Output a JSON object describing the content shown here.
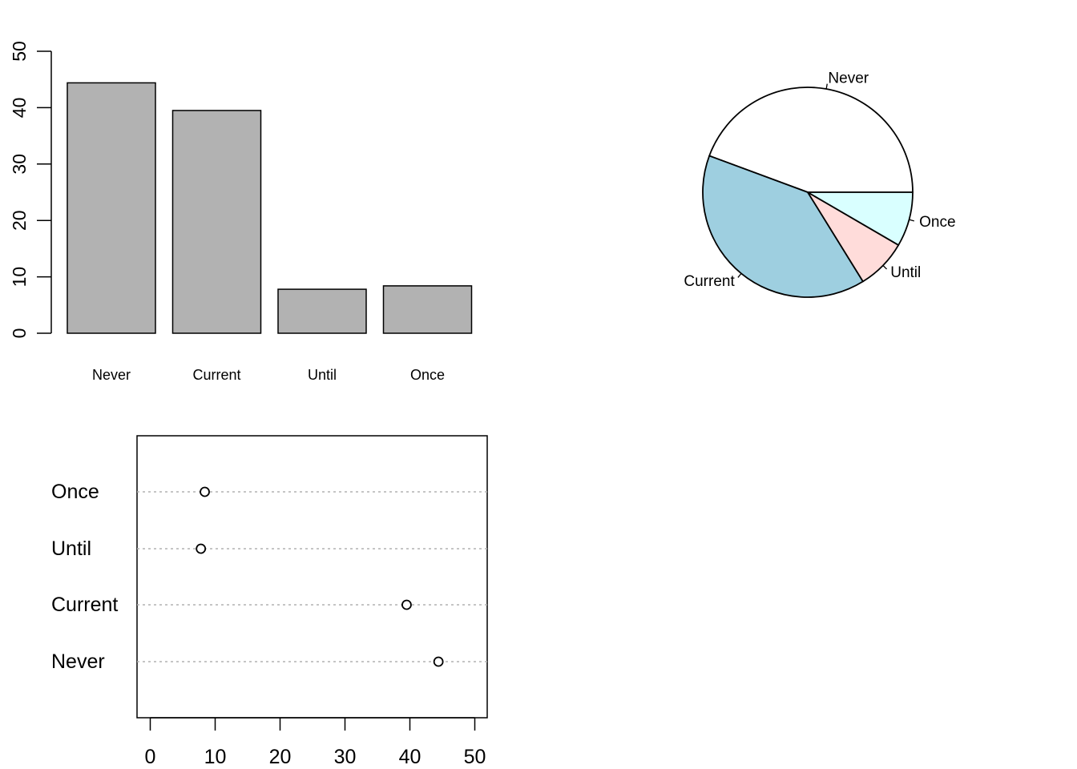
{
  "chart_data": [
    {
      "type": "bar",
      "categories": [
        "Never",
        "Current",
        "Until",
        "Once"
      ],
      "values": [
        44.4,
        39.5,
        7.8,
        8.4
      ],
      "ylim": [
        0,
        50
      ],
      "yticks": [
        0,
        10,
        20,
        30,
        40,
        50
      ],
      "bar_color": "#b2b2b2",
      "title": "",
      "xlabel": "",
      "ylabel": ""
    },
    {
      "type": "pie",
      "labels": [
        "Never",
        "Current",
        "Until",
        "Once"
      ],
      "values": [
        44.4,
        39.5,
        7.8,
        8.4
      ],
      "colors": [
        "#ffffff",
        "#9ecfe0",
        "#ffdcda",
        "#d9ffff"
      ],
      "title": ""
    },
    {
      "type": "scatter",
      "subtype": "dotchart",
      "categories": [
        "Never",
        "Current",
        "Until",
        "Once"
      ],
      "values": [
        44.4,
        39.5,
        7.8,
        8.4
      ],
      "xlim": [
        0,
        50
      ],
      "xticks": [
        0,
        10,
        20,
        30,
        40,
        50
      ],
      "gridline_color": "#b2b2b2",
      "title": "",
      "xlabel": "",
      "ylabel": ""
    }
  ]
}
